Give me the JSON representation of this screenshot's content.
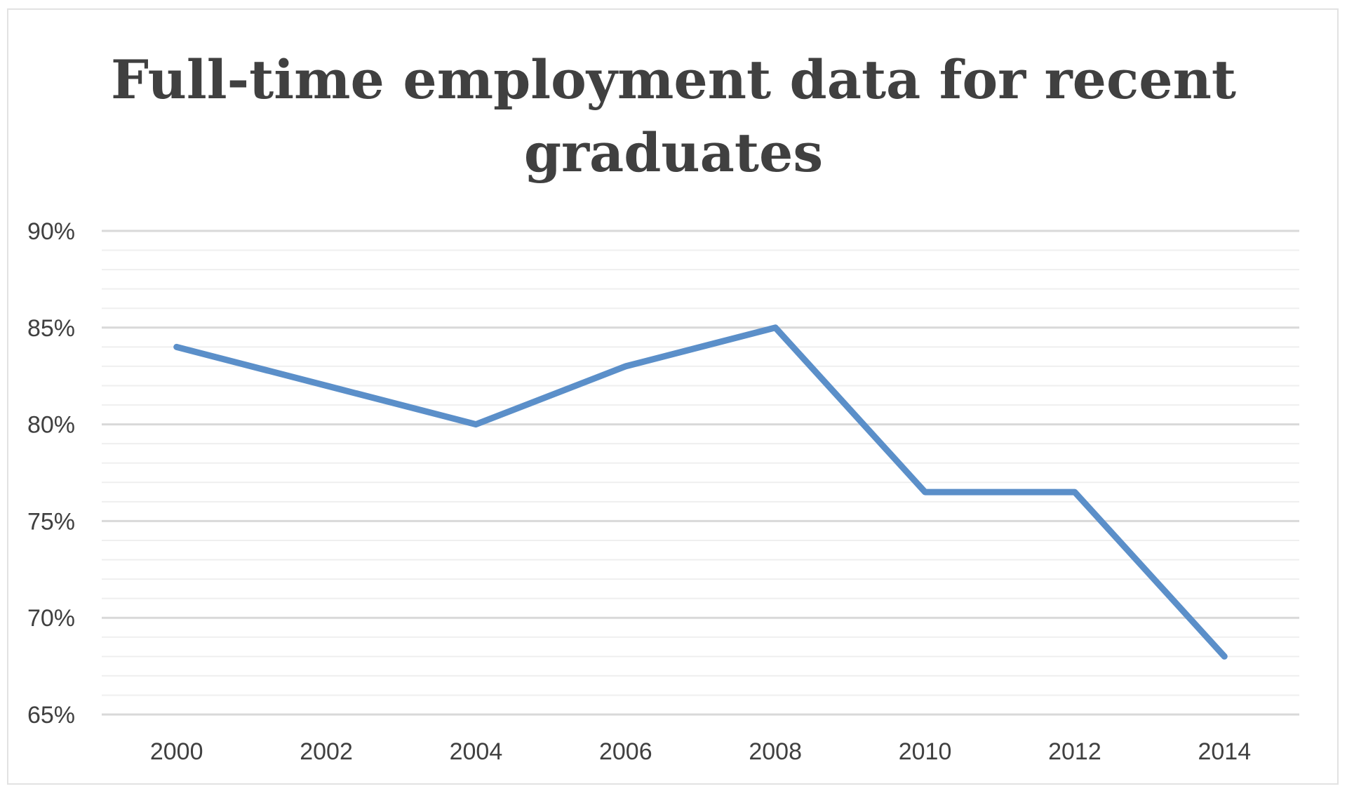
{
  "chart_data": {
    "type": "line",
    "title_lines": [
      "Full-time employment data for recent",
      "graduates"
    ],
    "x": [
      "2000",
      "2002",
      "2004",
      "2006",
      "2008",
      "2010",
      "2012",
      "2014"
    ],
    "series": [
      {
        "values": [
          84,
          82,
          80,
          83,
          85,
          76.5,
          76.5,
          68
        ]
      }
    ],
    "y_ticks": [
      "90%",
      "85%",
      "80%",
      "75%",
      "70%",
      "65%"
    ],
    "ylim": [
      65,
      90
    ],
    "major_unit": 5,
    "minor_unit": 1,
    "grid": true,
    "legend": "none",
    "line_color": "#5b8fc9",
    "grid_color": "#d9d9d9",
    "minor_grid_color": "#efefef"
  }
}
